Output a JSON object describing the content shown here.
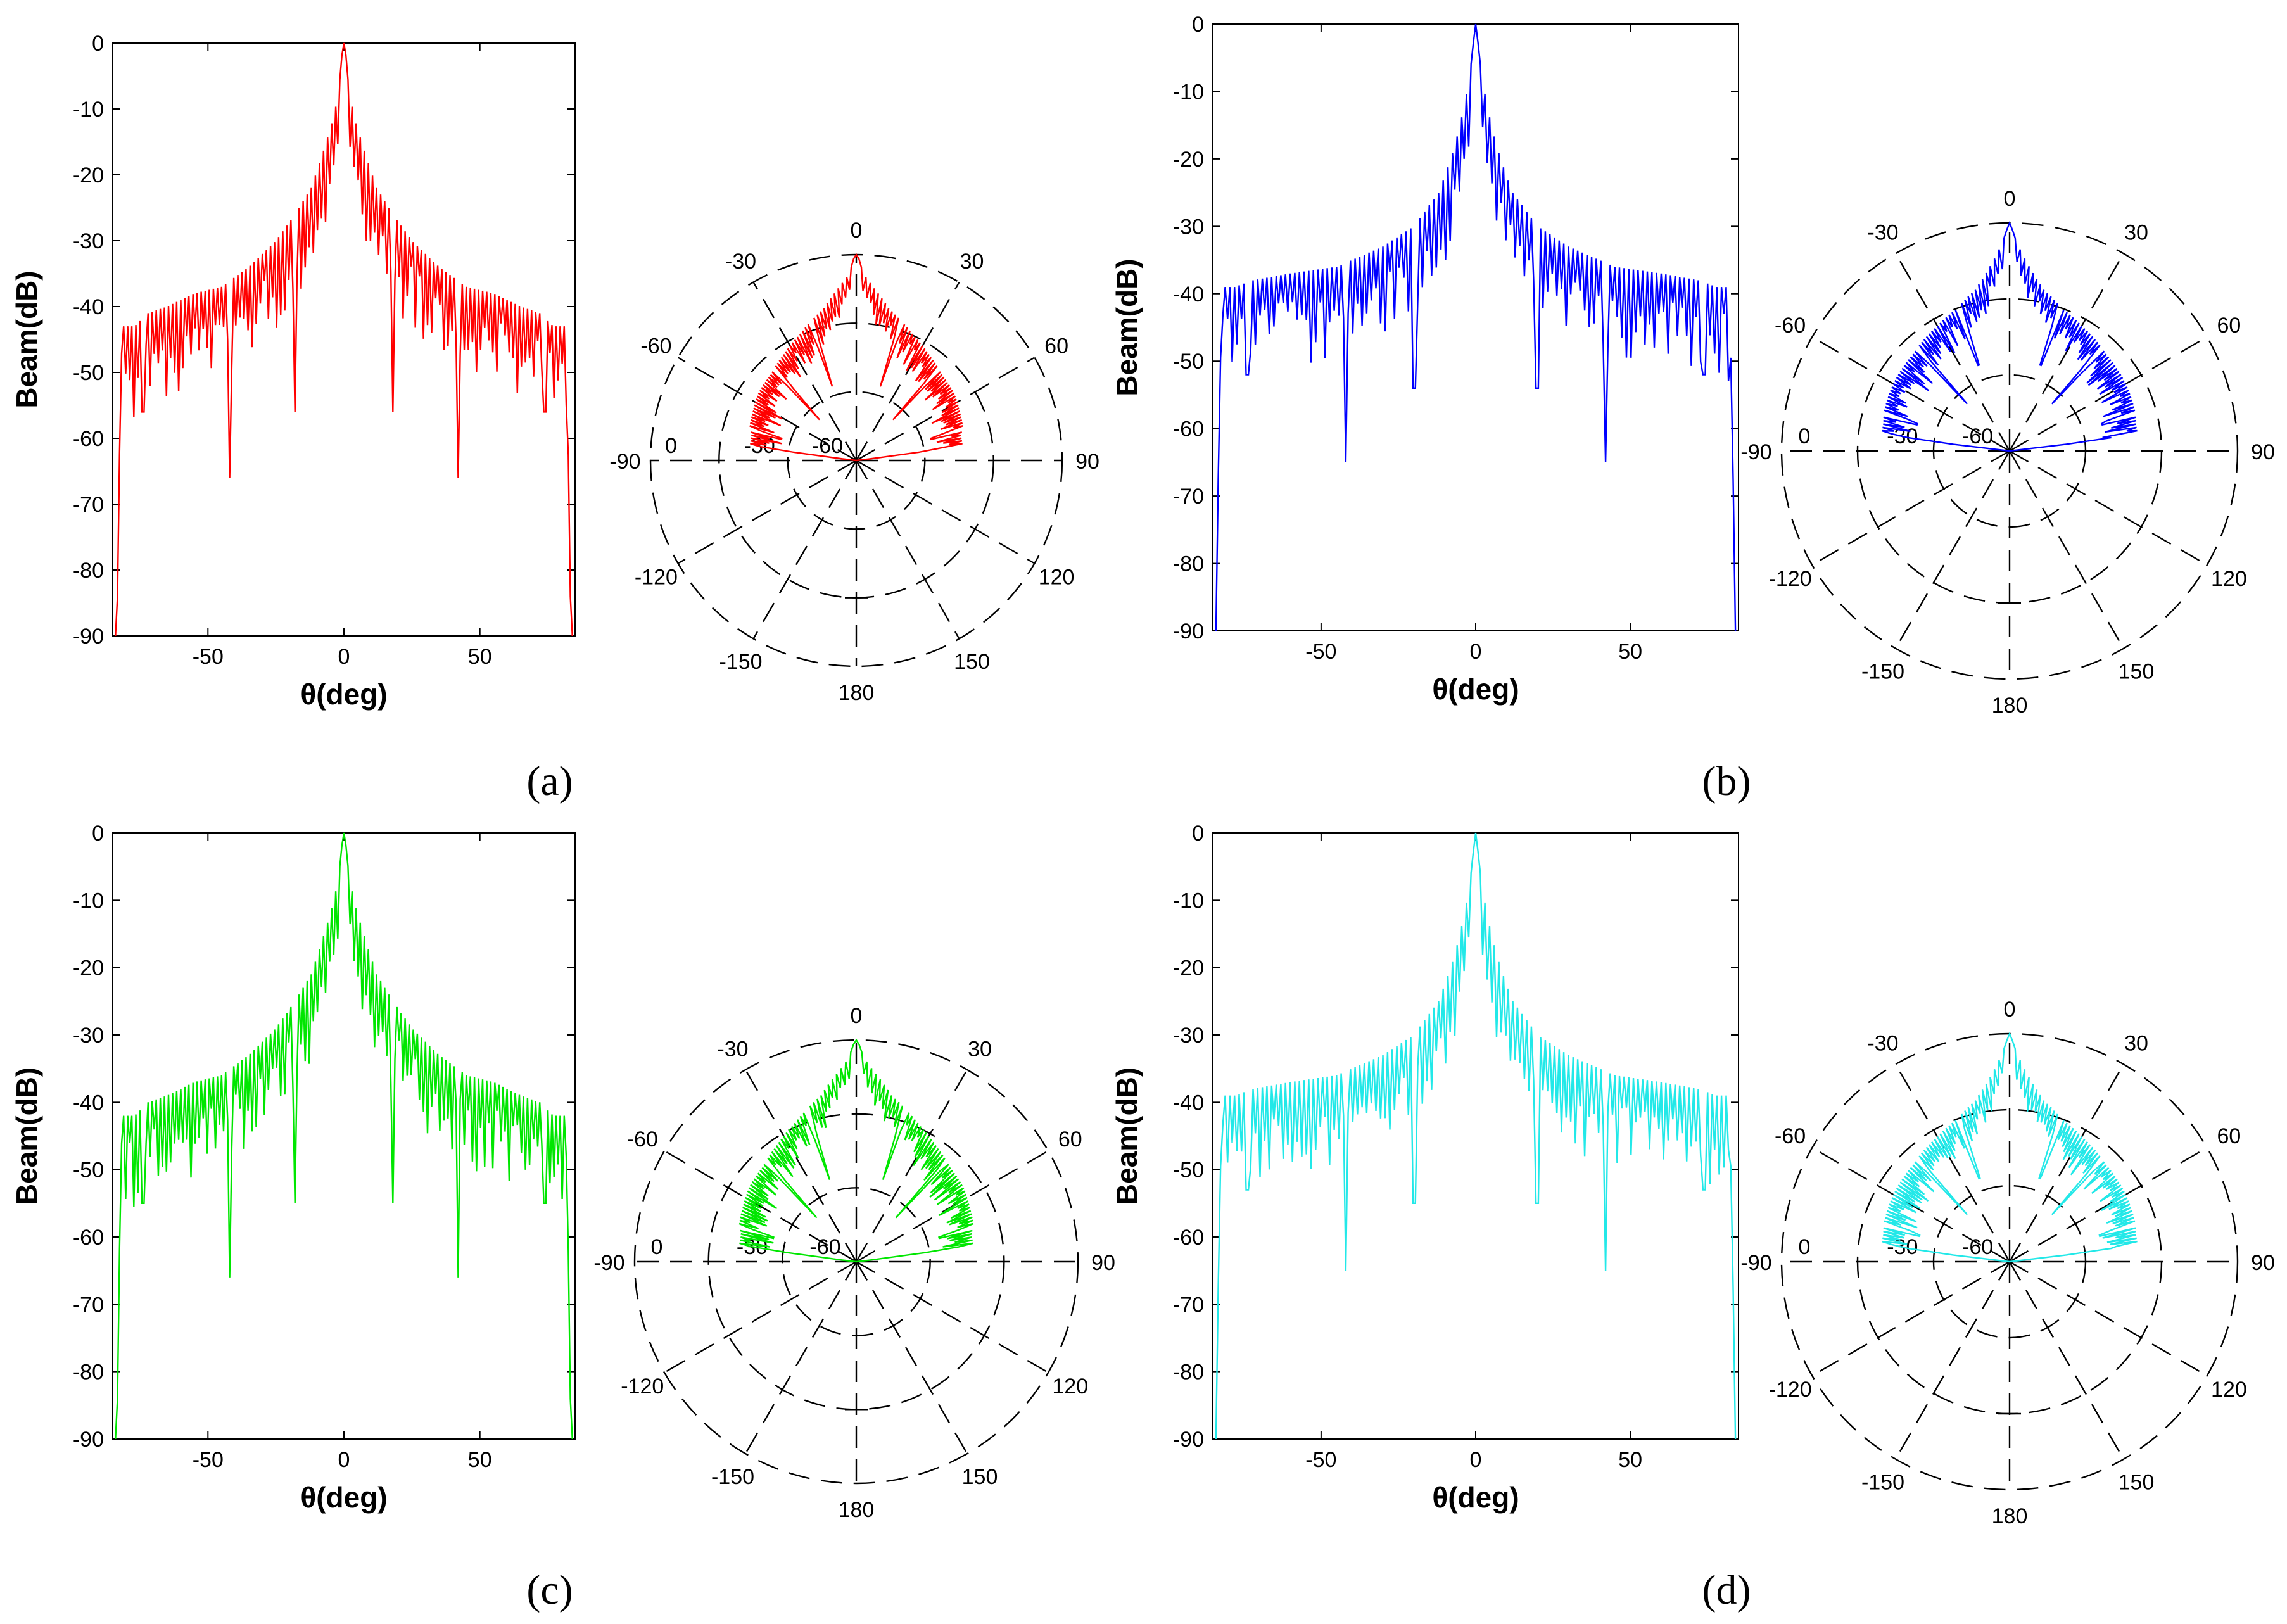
{
  "chart_data": [
    {
      "panel": "(a)",
      "type": "line",
      "color": "#ff0000",
      "xlabel": "θ(deg)",
      "ylabel": "Beam(dB)",
      "xlim": [
        -85,
        85
      ],
      "ylim": [
        -90,
        0
      ],
      "xticks": [
        -50,
        0,
        50
      ],
      "yticks": [
        0,
        -10,
        -20,
        -30,
        -40,
        -50,
        -60,
        -70,
        -80,
        -90
      ],
      "envelope": [
        [
          -84,
          -90
        ],
        [
          -83,
          -82
        ],
        [
          -82,
          -43
        ],
        [
          -80,
          -43
        ],
        [
          -77,
          -43
        ],
        [
          -72,
          -41
        ],
        [
          -65,
          -40
        ],
        [
          -55,
          -38
        ],
        [
          -45,
          -37
        ],
        [
          -35,
          -34
        ],
        [
          -25,
          -30
        ],
        [
          -18,
          -26
        ],
        [
          -12,
          -22
        ],
        [
          -8,
          -17
        ],
        [
          -5,
          -13
        ],
        [
          -2,
          -8
        ],
        [
          -0.8,
          -2
        ],
        [
          0,
          0
        ],
        [
          0.8,
          -2
        ],
        [
          2,
          -8
        ],
        [
          5,
          -13
        ],
        [
          8,
          -17
        ],
        [
          12,
          -22
        ],
        [
          18,
          -26
        ],
        [
          25,
          -30
        ],
        [
          35,
          -34
        ],
        [
          45,
          -37
        ],
        [
          55,
          -38
        ],
        [
          65,
          -40
        ],
        [
          72,
          -41
        ],
        [
          77,
          -43
        ],
        [
          80,
          -43
        ],
        [
          82,
          -43
        ],
        [
          83,
          -82
        ],
        [
          84,
          -90
        ]
      ],
      "notches": [
        [
          -74,
          -56
        ],
        [
          -42,
          -66
        ],
        [
          -18,
          -56
        ],
        [
          18,
          -56
        ],
        [
          42,
          -66
        ],
        [
          74,
          -56
        ]
      ],
      "polar": {
        "angle_ticks": [
          "0",
          "30",
          "60",
          "90",
          "120",
          "150",
          "180",
          "-150",
          "-120",
          "-90",
          "-60",
          "-30"
        ],
        "radial_ticks": [
          "0",
          "-30",
          "-60"
        ]
      }
    },
    {
      "panel": "(b)",
      "type": "line",
      "color": "#0000ff",
      "xlabel": "θ(deg)",
      "ylabel": "Beam(dB)",
      "xlim": [
        -85,
        85
      ],
      "ylim": [
        -90,
        0
      ],
      "xticks": [
        -50,
        0,
        50
      ],
      "yticks": [
        0,
        -10,
        -20,
        -30,
        -40,
        -50,
        -60,
        -70,
        -80,
        -90
      ],
      "envelope": [
        [
          -84,
          -90
        ],
        [
          -83,
          -60
        ],
        [
          -82,
          -39
        ],
        [
          -78,
          -39
        ],
        [
          -72,
          -38
        ],
        [
          -60,
          -37
        ],
        [
          -45,
          -36
        ],
        [
          -30,
          -33
        ],
        [
          -20,
          -30
        ],
        [
          -12,
          -25
        ],
        [
          -8,
          -20
        ],
        [
          -5,
          -15
        ],
        [
          -2,
          -8
        ],
        [
          -0.8,
          -3
        ],
        [
          0,
          0
        ],
        [
          0.8,
          -3
        ],
        [
          2,
          -8
        ],
        [
          5,
          -15
        ],
        [
          8,
          -20
        ],
        [
          12,
          -25
        ],
        [
          20,
          -30
        ],
        [
          30,
          -33
        ],
        [
          45,
          -36
        ],
        [
          60,
          -37
        ],
        [
          72,
          -38
        ],
        [
          78,
          -39
        ],
        [
          82,
          -39
        ],
        [
          83,
          -60
        ],
        [
          84,
          -90
        ]
      ],
      "notches": [
        [
          -74,
          -52
        ],
        [
          -42,
          -65
        ],
        [
          -20,
          -54
        ],
        [
          20,
          -54
        ],
        [
          42,
          -65
        ],
        [
          74,
          -52
        ]
      ],
      "polar": {
        "angle_ticks": [
          "0",
          "30",
          "60",
          "90",
          "120",
          "150",
          "180",
          "-150",
          "-120",
          "-90",
          "-60",
          "-30"
        ],
        "radial_ticks": [
          "0",
          "-30",
          "-60"
        ]
      }
    },
    {
      "panel": "(c)",
      "type": "line",
      "color": "#00e600",
      "xlabel": "θ(deg)",
      "ylabel": "Beam(dB)",
      "xlim": [
        -85,
        85
      ],
      "ylim": [
        -90,
        0
      ],
      "xticks": [
        -50,
        0,
        50
      ],
      "yticks": [
        0,
        -10,
        -20,
        -30,
        -40,
        -50,
        -60,
        -70,
        -80,
        -90
      ],
      "envelope": [
        [
          -84,
          -90
        ],
        [
          -83,
          -82
        ],
        [
          -82,
          -42
        ],
        [
          -80,
          -42
        ],
        [
          -77,
          -42
        ],
        [
          -72,
          -40
        ],
        [
          -65,
          -39
        ],
        [
          -55,
          -37
        ],
        [
          -45,
          -36
        ],
        [
          -35,
          -33
        ],
        [
          -25,
          -29
        ],
        [
          -18,
          -25
        ],
        [
          -12,
          -21
        ],
        [
          -8,
          -16
        ],
        [
          -5,
          -12
        ],
        [
          -2,
          -7
        ],
        [
          -0.8,
          -2
        ],
        [
          0,
          0
        ],
        [
          0.8,
          -2
        ],
        [
          2,
          -7
        ],
        [
          5,
          -12
        ],
        [
          8,
          -16
        ],
        [
          12,
          -21
        ],
        [
          18,
          -25
        ],
        [
          25,
          -29
        ],
        [
          35,
          -33
        ],
        [
          45,
          -36
        ],
        [
          55,
          -37
        ],
        [
          65,
          -39
        ],
        [
          72,
          -40
        ],
        [
          77,
          -42
        ],
        [
          80,
          -42
        ],
        [
          82,
          -42
        ],
        [
          83,
          -82
        ],
        [
          84,
          -90
        ]
      ],
      "notches": [
        [
          -74,
          -55
        ],
        [
          -42,
          -66
        ],
        [
          -18,
          -55
        ],
        [
          18,
          -55
        ],
        [
          42,
          -66
        ],
        [
          74,
          -55
        ]
      ],
      "polar": {
        "angle_ticks": [
          "0",
          "30",
          "60",
          "90",
          "120",
          "150",
          "180",
          "-150",
          "-120",
          "-90",
          "-60",
          "-30"
        ],
        "radial_ticks": [
          "0",
          "-30",
          "-60"
        ]
      }
    },
    {
      "panel": "(d)",
      "type": "line",
      "color": "#22e8e8",
      "xlabel": "θ(deg)",
      "ylabel": "Beam(dB)",
      "xlim": [
        -85,
        85
      ],
      "ylim": [
        -90,
        0
      ],
      "xticks": [
        -50,
        0,
        50
      ],
      "yticks": [
        0,
        -10,
        -20,
        -30,
        -40,
        -50,
        -60,
        -70,
        -80,
        -90
      ],
      "envelope": [
        [
          -84,
          -90
        ],
        [
          -83,
          -60
        ],
        [
          -82,
          -39
        ],
        [
          -78,
          -39
        ],
        [
          -72,
          -38
        ],
        [
          -60,
          -37
        ],
        [
          -45,
          -36
        ],
        [
          -30,
          -33
        ],
        [
          -20,
          -30
        ],
        [
          -12,
          -25
        ],
        [
          -8,
          -20
        ],
        [
          -5,
          -15
        ],
        [
          -2,
          -8
        ],
        [
          -0.8,
          -3
        ],
        [
          0,
          0
        ],
        [
          0.8,
          -3
        ],
        [
          2,
          -8
        ],
        [
          5,
          -15
        ],
        [
          8,
          -20
        ],
        [
          12,
          -25
        ],
        [
          20,
          -30
        ],
        [
          30,
          -33
        ],
        [
          45,
          -36
        ],
        [
          60,
          -37
        ],
        [
          72,
          -38
        ],
        [
          78,
          -39
        ],
        [
          82,
          -39
        ],
        [
          83,
          -60
        ],
        [
          84,
          -90
        ]
      ],
      "notches": [
        [
          -74,
          -53
        ],
        [
          -42,
          -65
        ],
        [
          -20,
          -55
        ],
        [
          20,
          -55
        ],
        [
          42,
          -65
        ],
        [
          74,
          -53
        ]
      ],
      "polar": {
        "angle_ticks": [
          "0",
          "30",
          "60",
          "90",
          "120",
          "150",
          "180",
          "-150",
          "-120",
          "-90",
          "-60",
          "-30"
        ],
        "radial_ticks": [
          "0",
          "-30",
          "-60"
        ]
      }
    }
  ]
}
